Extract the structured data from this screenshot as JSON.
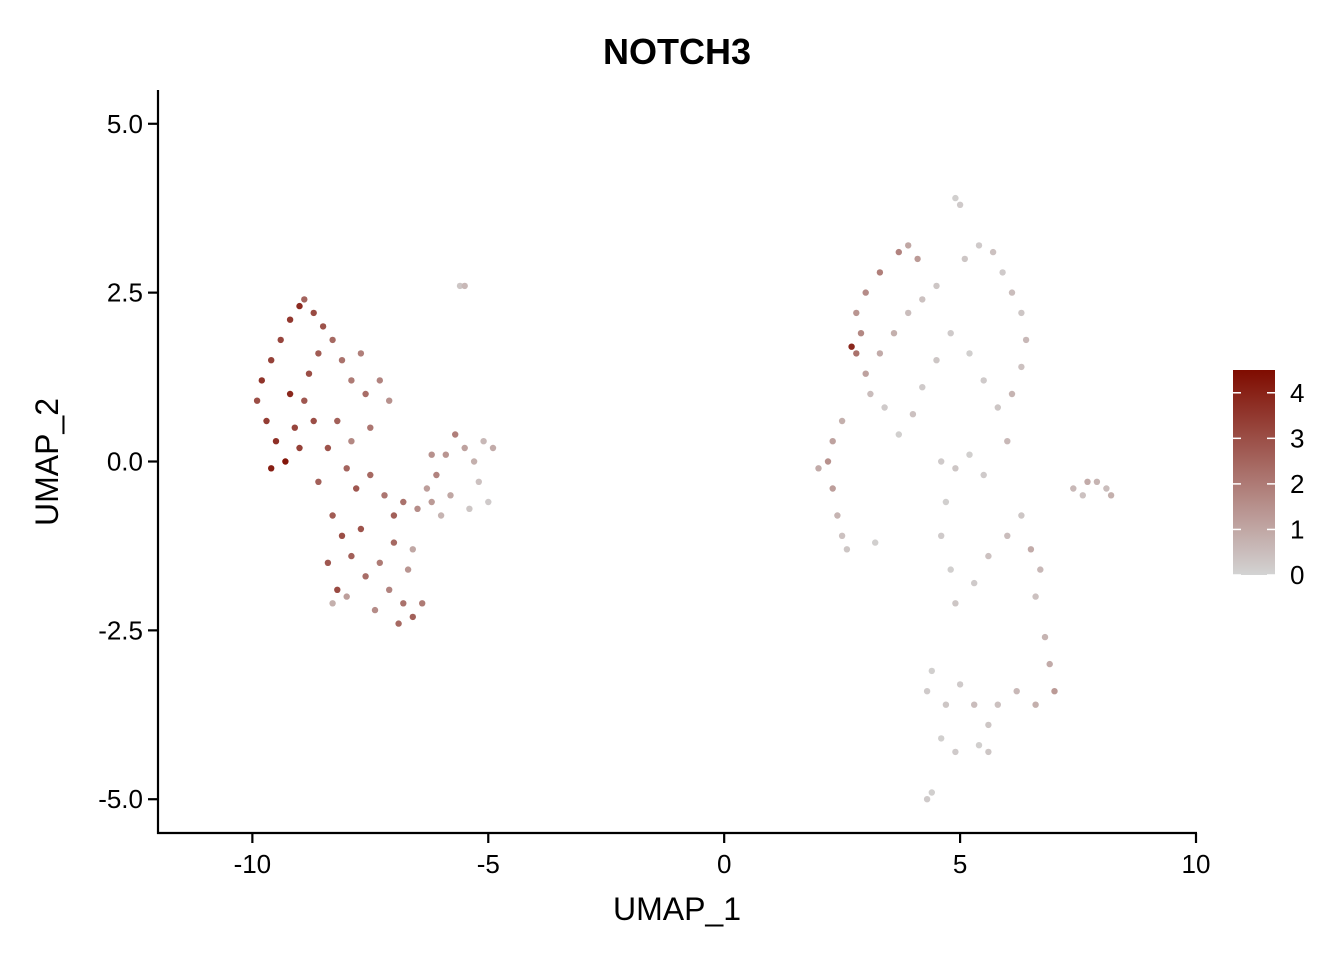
{
  "chart_data": {
    "type": "scatter",
    "title": "NOTCH3",
    "xlabel": "UMAP_1",
    "ylabel": "UMAP_2",
    "xlim": [
      -12.0,
      10.0
    ],
    "ylim": [
      -5.5,
      5.5
    ],
    "x_ticks": [
      -10,
      -5,
      0,
      5,
      10
    ],
    "x_tick_labels": [
      "-10",
      "-5",
      "0",
      "5",
      "10"
    ],
    "y_ticks": [
      -5.0,
      -2.5,
      0.0,
      2.5,
      5.0
    ],
    "y_tick_labels": [
      "-5.0",
      "-2.5",
      "0.0",
      "2.5",
      "5.0"
    ],
    "grid": false,
    "legend_position": "right",
    "colorscale": {
      "low_color": "#d3d3d3",
      "high_color": "#7f0c00",
      "min": 0,
      "max": 4.5,
      "ticks": [
        0,
        1,
        2,
        3,
        4
      ],
      "tick_labels": [
        "0",
        "1",
        "2",
        "3",
        "4"
      ]
    },
    "points": [
      [
        -9.4,
        1.8,
        3.2
      ],
      [
        -9.2,
        2.1,
        3.5
      ],
      [
        -9.0,
        2.3,
        3.8
      ],
      [
        -8.7,
        2.2,
        3.1
      ],
      [
        -8.5,
        2.0,
        2.9
      ],
      [
        -9.6,
        1.5,
        3.3
      ],
      [
        -9.8,
        1.2,
        3.6
      ],
      [
        -9.9,
        0.9,
        3.0
      ],
      [
        -9.7,
        0.6,
        3.4
      ],
      [
        -9.5,
        0.3,
        3.7
      ],
      [
        -9.3,
        0.0,
        4.3
      ],
      [
        -9.6,
        -0.1,
        4.1
      ],
      [
        -9.1,
        0.5,
        3.2
      ],
      [
        -8.9,
        0.9,
        2.8
      ],
      [
        -8.8,
        1.3,
        3.0
      ],
      [
        -8.6,
        1.6,
        2.7
      ],
      [
        -8.3,
        1.8,
        2.4
      ],
      [
        -8.1,
        1.5,
        2.2
      ],
      [
        -7.9,
        1.2,
        2.0
      ],
      [
        -7.6,
        1.0,
        2.3
      ],
      [
        -7.3,
        1.2,
        1.8
      ],
      [
        -7.1,
        0.9,
        1.5
      ],
      [
        -8.2,
        0.6,
        2.6
      ],
      [
        -8.4,
        0.2,
        2.9
      ],
      [
        -8.0,
        -0.1,
        2.5
      ],
      [
        -7.8,
        -0.4,
        2.8
      ],
      [
        -7.5,
        -0.2,
        2.4
      ],
      [
        -7.2,
        -0.5,
        2.1
      ],
      [
        -7.0,
        -0.8,
        2.6
      ],
      [
        -6.8,
        -0.6,
        2.2
      ],
      [
        -8.3,
        -0.8,
        2.7
      ],
      [
        -8.1,
        -1.1,
        3.0
      ],
      [
        -7.9,
        -1.4,
        2.6
      ],
      [
        -8.4,
        -1.5,
        2.8
      ],
      [
        -8.2,
        -1.9,
        3.1
      ],
      [
        -7.6,
        -1.7,
        2.3
      ],
      [
        -7.3,
        -1.5,
        2.0
      ],
      [
        -7.1,
        -1.9,
        1.8
      ],
      [
        -6.8,
        -2.1,
        2.2
      ],
      [
        -6.6,
        -2.3,
        2.6
      ],
      [
        -6.4,
        -2.1,
        2.0
      ],
      [
        -6.9,
        -2.4,
        2.4
      ],
      [
        -7.4,
        -2.2,
        1.6
      ],
      [
        -8.0,
        -2.0,
        1.2
      ],
      [
        -8.3,
        -2.1,
        0.8
      ],
      [
        -6.7,
        -1.6,
        1.4
      ],
      [
        -6.6,
        -1.3,
        1.0
      ],
      [
        -6.5,
        -0.7,
        1.6
      ],
      [
        -6.3,
        -0.4,
        1.2
      ],
      [
        -6.1,
        -0.2,
        1.8
      ],
      [
        -5.9,
        0.1,
        1.4
      ],
      [
        -5.7,
        0.4,
        1.9
      ],
      [
        -5.5,
        0.2,
        1.1
      ],
      [
        -5.3,
        0.0,
        0.8
      ],
      [
        -5.1,
        0.3,
        0.6
      ],
      [
        -4.9,
        0.2,
        0.9
      ],
      [
        -5.2,
        -0.3,
        0.4
      ],
      [
        -5.0,
        -0.6,
        0.2
      ],
      [
        -5.4,
        -0.7,
        0.3
      ],
      [
        -5.8,
        -0.5,
        1.0
      ],
      [
        -6.0,
        -0.8,
        0.7
      ],
      [
        -6.2,
        -0.6,
        1.3
      ],
      [
        -7.5,
        0.5,
        2.1
      ],
      [
        -7.7,
        1.6,
        1.9
      ],
      [
        -8.9,
        2.4,
        2.5
      ],
      [
        -9.2,
        1.0,
        3.9
      ],
      [
        -9.0,
        0.2,
        3.3
      ],
      [
        -8.6,
        -0.3,
        2.6
      ],
      [
        -7.7,
        -1.0,
        2.9
      ],
      [
        -7.0,
        -1.2,
        2.4
      ],
      [
        -5.6,
        2.6,
        0.3
      ],
      [
        -5.5,
        2.6,
        0.6
      ],
      [
        -6.2,
        0.1,
        1.5
      ],
      [
        -7.9,
        0.3,
        1.7
      ],
      [
        -8.7,
        0.6,
        3.0
      ],
      [
        4.9,
        3.9,
        0.1
      ],
      [
        5.0,
        3.8,
        0.2
      ],
      [
        4.1,
        3.0,
        1.3
      ],
      [
        3.7,
        3.1,
        1.8
      ],
      [
        3.3,
        2.8,
        1.9
      ],
      [
        3.0,
        2.5,
        1.6
      ],
      [
        2.8,
        2.2,
        1.4
      ],
      [
        2.9,
        1.9,
        1.7
      ],
      [
        2.8,
        1.6,
        2.2
      ],
      [
        3.0,
        1.3,
        1.1
      ],
      [
        3.3,
        1.6,
        0.9
      ],
      [
        3.6,
        1.9,
        0.8
      ],
      [
        3.9,
        2.2,
        0.5
      ],
      [
        4.2,
        2.4,
        0.4
      ],
      [
        4.5,
        2.6,
        0.3
      ],
      [
        5.1,
        3.0,
        0.3
      ],
      [
        5.4,
        3.2,
        0.2
      ],
      [
        5.7,
        3.1,
        0.4
      ],
      [
        5.9,
        2.8,
        0.2
      ],
      [
        6.1,
        2.5,
        0.5
      ],
      [
        6.3,
        2.2,
        0.3
      ],
      [
        6.4,
        1.8,
        0.6
      ],
      [
        6.3,
        1.4,
        0.4
      ],
      [
        6.1,
        1.0,
        0.7
      ],
      [
        5.8,
        0.8,
        0.3
      ],
      [
        5.5,
        1.2,
        0.2
      ],
      [
        5.2,
        1.6,
        0.1
      ],
      [
        4.8,
        1.9,
        0.2
      ],
      [
        4.5,
        1.5,
        0.3
      ],
      [
        4.2,
        1.1,
        0.2
      ],
      [
        4.0,
        0.7,
        0.4
      ],
      [
        3.7,
        0.4,
        0.1
      ],
      [
        3.4,
        0.8,
        0.2
      ],
      [
        3.1,
        1.0,
        0.5
      ],
      [
        2.5,
        0.6,
        0.8
      ],
      [
        2.3,
        0.3,
        1.1
      ],
      [
        2.2,
        0.0,
        1.5
      ],
      [
        2.0,
        -0.1,
        0.9
      ],
      [
        2.3,
        -0.4,
        1.2
      ],
      [
        2.4,
        -0.8,
        0.7
      ],
      [
        2.5,
        -1.1,
        0.4
      ],
      [
        2.6,
        -1.3,
        0.3
      ],
      [
        3.2,
        -1.2,
        0.1
      ],
      [
        4.6,
        0.0,
        0.2
      ],
      [
        4.9,
        -0.1,
        0.3
      ],
      [
        5.2,
        0.1,
        0.1
      ],
      [
        5.5,
        -0.2,
        0.2
      ],
      [
        4.7,
        -0.6,
        0.1
      ],
      [
        4.6,
        -1.1,
        0.2
      ],
      [
        4.8,
        -1.6,
        0.1
      ],
      [
        4.9,
        -2.1,
        0.3
      ],
      [
        5.3,
        -1.8,
        0.2
      ],
      [
        5.6,
        -1.4,
        0.4
      ],
      [
        6.0,
        -1.1,
        0.5
      ],
      [
        6.3,
        -0.8,
        0.3
      ],
      [
        6.5,
        -1.3,
        0.9
      ],
      [
        6.7,
        -1.6,
        0.6
      ],
      [
        6.6,
        -2.0,
        0.4
      ],
      [
        6.8,
        -2.6,
        0.7
      ],
      [
        6.9,
        -3.0,
        0.9
      ],
      [
        7.0,
        -3.4,
        1.3
      ],
      [
        6.6,
        -3.6,
        0.8
      ],
      [
        6.2,
        -3.4,
        0.6
      ],
      [
        5.8,
        -3.6,
        0.4
      ],
      [
        5.6,
        -3.9,
        0.3
      ],
      [
        5.3,
        -3.6,
        0.5
      ],
      [
        5.0,
        -3.3,
        0.2
      ],
      [
        4.7,
        -3.6,
        0.3
      ],
      [
        4.4,
        -3.1,
        0.1
      ],
      [
        4.3,
        -3.4,
        0.2
      ],
      [
        4.6,
        -4.1,
        0.1
      ],
      [
        4.9,
        -4.3,
        0.2
      ],
      [
        5.4,
        -4.2,
        0.1
      ],
      [
        5.6,
        -4.3,
        0.3
      ],
      [
        4.4,
        -4.9,
        0.1
      ],
      [
        4.3,
        -5.0,
        0.2
      ],
      [
        7.4,
        -0.4,
        0.6
      ],
      [
        7.7,
        -0.3,
        0.9
      ],
      [
        7.9,
        -0.3,
        0.7
      ],
      [
        8.1,
        -0.4,
        0.5
      ],
      [
        8.2,
        -0.5,
        0.8
      ],
      [
        7.6,
        -0.5,
        0.4
      ],
      [
        3.9,
        3.2,
        1.0
      ],
      [
        2.7,
        1.7,
        3.9
      ],
      [
        6.0,
        0.3,
        0.6
      ]
    ]
  }
}
